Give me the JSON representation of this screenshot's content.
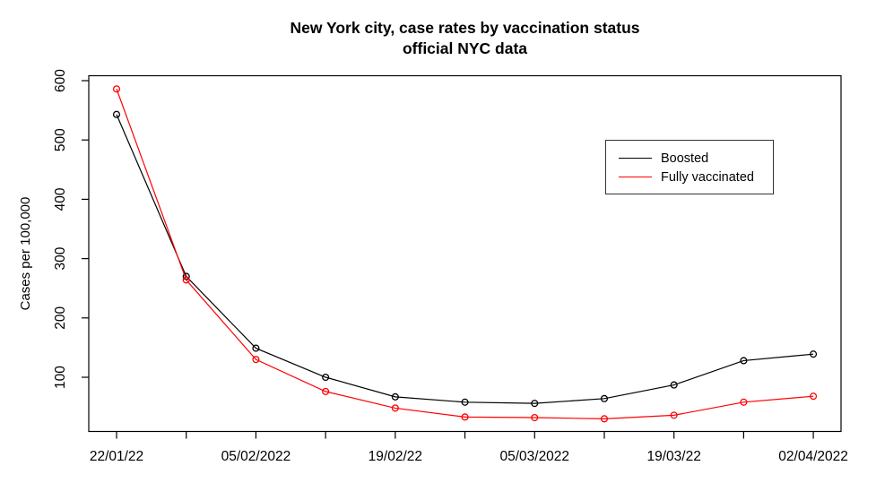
{
  "chart_data": {
    "type": "line",
    "title": "New York city, case rates by vaccination status",
    "subtitle": "official NYC data",
    "xlabel": "",
    "ylabel": "Cases per 100,000",
    "x_ticklabels": [
      "22/01/22",
      "",
      "05/02/2022",
      "",
      "19/02/22",
      "",
      "05/03/2022",
      "",
      "19/03/22",
      "",
      "02/04/2022"
    ],
    "y_ticks": [
      100,
      200,
      300,
      400,
      500,
      600
    ],
    "ylim": [
      20,
      620
    ],
    "grid": false,
    "legend_position": "top-right",
    "point_style": "open-circle",
    "axis_color": "#000000",
    "series": [
      {
        "name": "Boosted",
        "color": "#000000",
        "values": [
          543,
          270,
          149,
          100,
          67,
          58,
          56,
          64,
          87,
          128,
          139
        ]
      },
      {
        "name": "Fully vaccinated",
        "color": "#ff0000",
        "values": [
          586,
          264,
          130,
          76,
          48,
          33,
          32,
          30,
          36,
          58,
          68
        ]
      }
    ]
  }
}
